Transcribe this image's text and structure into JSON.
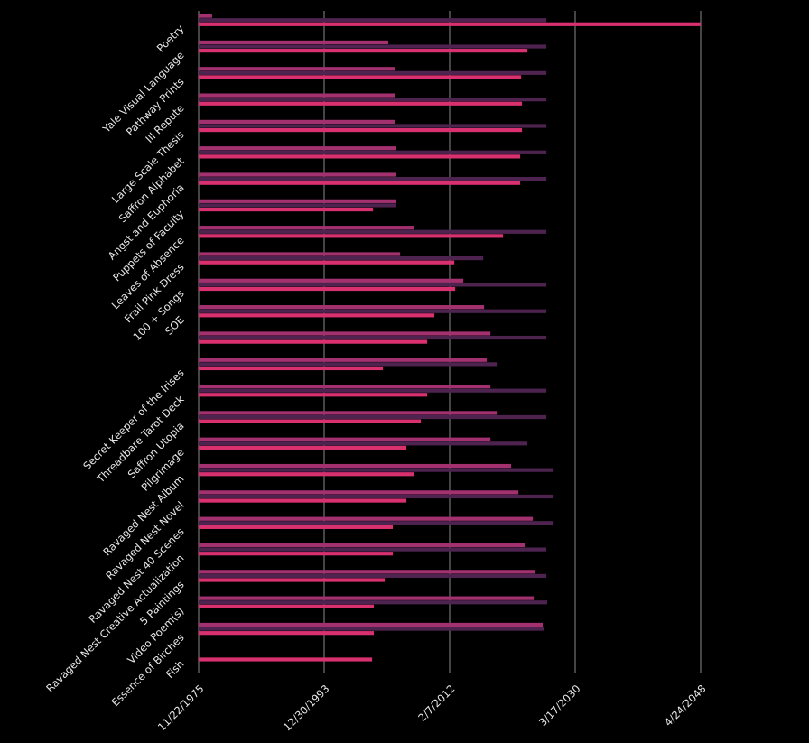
{
  "chart_data": {
    "type": "barh",
    "categories": [
      "Poetry",
      "Yale Visual Language",
      "Pathway Prints",
      "Ill Repute",
      "Large Scale Thesis",
      "Saffron Alphabet",
      "Angst and Euphoria",
      "Puppets of Faculty",
      "Leaves of Absence",
      "Frail Pink Dress",
      "100 + Songs",
      "SOE",
      null,
      "Secret Keeper of the Irises",
      "Threadbare Tarot Deck",
      "Saffron Utopia",
      "Pilgrimage",
      "Ravaged Nest Album",
      "Ravaged Nest Novel",
      "Ravaged Nest 40 Scenes",
      "Ravaged Nest Creative Actualization",
      "5 Paintings",
      "Video Poem(s)",
      "Essence of Birches",
      "Fish"
    ],
    "series": [
      {
        "color": "#a3306f",
        "values": [
          "1977-11-01",
          "2003-04-01",
          "2004-04-15",
          "2004-03-01",
          "2004-03-01",
          "2004-06-01",
          "2004-06-01",
          "2004-06-01",
          "2007-01-10",
          "2004-12-15",
          "2014-01-25",
          "2017-01-25",
          "2017-12-25",
          "2017-06-15",
          "2017-12-25",
          "2019-01-10",
          "2017-12-25",
          "2020-12-20",
          "2022-01-10",
          "2024-02-05",
          "2023-01-20",
          "2024-06-25",
          "2024-03-25",
          "2025-07-10",
          null
        ]
      },
      {
        "color": "#4e2350",
        "values": [
          "2026-01-20",
          "2026-01-20",
          "2026-01-20",
          "2026-01-20",
          "2026-01-20",
          "2026-01-20",
          "2026-01-20",
          "2004-06-01",
          "2026-01-20",
          "2016-12-10",
          "2026-01-20",
          "2026-01-20",
          "2026-01-20",
          "2019-01-10",
          "2026-01-20",
          "2026-01-20",
          "2023-04-25",
          "2027-02-05",
          "2027-02-05",
          "2027-02-05",
          "2026-01-20",
          "2026-01-20",
          "2026-03-05",
          "2025-08-25",
          null
        ]
      },
      {
        "color": "#d9306f",
        "values": [
          "2048-04-24",
          "2023-04-25",
          "2022-05-30",
          "2022-07-15",
          "2022-07-15",
          "2022-04-10",
          "2022-04-10",
          "2001-01-15",
          "2019-10-20",
          "2012-10-10",
          "2012-11-25",
          "2009-11-25",
          "2008-11-10",
          "2002-06-20",
          "2008-11-10",
          "2007-12-10",
          "2005-11-10",
          "2006-11-25",
          "2005-11-10",
          "2003-11-25",
          "2003-11-25",
          "2002-09-25",
          "2001-03-01",
          "2001-03-01",
          "2000-12-01"
        ]
      }
    ],
    "xlim": [
      "1975-11-22",
      "2048-04-24"
    ],
    "xticks": [
      {
        "value": "1975-11-22",
        "label": "11/22/1975"
      },
      {
        "value": "1993-12-30",
        "label": "12/30/1993"
      },
      {
        "value": "2012-02-07",
        "label": "2/7/2012"
      },
      {
        "value": "2030-03-17",
        "label": "3/17/2030"
      },
      {
        "value": "2048-04-24",
        "label": "4/24/2048"
      }
    ],
    "grid": true
  }
}
